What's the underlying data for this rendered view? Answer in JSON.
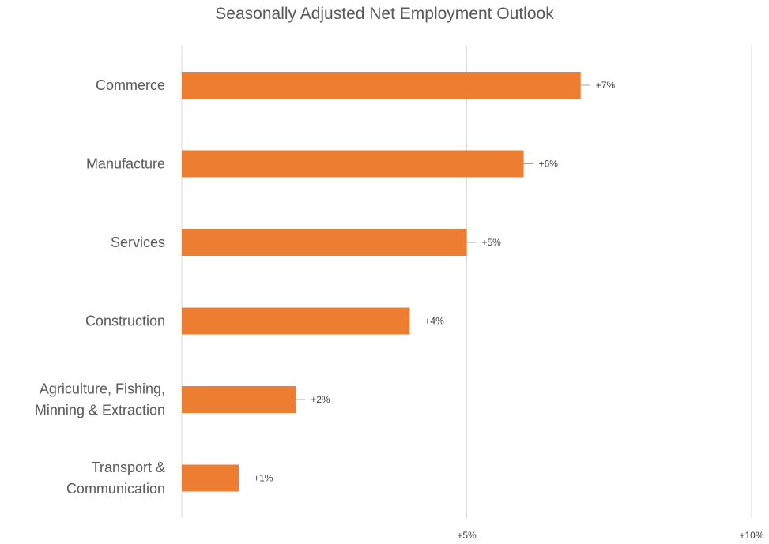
{
  "chart_data": {
    "type": "bar",
    "orientation": "horizontal",
    "title": "Seasonally Adjusted Net Employment Outlook",
    "categories": [
      "Commerce",
      "Manufacture",
      "Services",
      "Construction",
      "Agriculture, Fishing, Minning & Extraction",
      "Transport & Communication"
    ],
    "category_lines": [
      [
        "Commerce"
      ],
      [
        "Manufacture"
      ],
      [
        "Services"
      ],
      [
        "Construction"
      ],
      [
        "Agriculture, Fishing,",
        "Minning & Extraction"
      ],
      [
        "Transport &",
        "Communication"
      ]
    ],
    "values": [
      7,
      6,
      5,
      4,
      2,
      1
    ],
    "data_labels": [
      "+7%",
      "+6%",
      "+5%",
      "+4%",
      "+2%",
      "+1%"
    ],
    "xlim": [
      0,
      10
    ],
    "x_ticks": [
      {
        "value": 5,
        "label": "+5%"
      },
      {
        "value": 10,
        "label": "+10%"
      }
    ],
    "gridlines": true,
    "legend": "none",
    "bar_color": "#ED7D31",
    "grid_color": "#D9D9D9"
  }
}
